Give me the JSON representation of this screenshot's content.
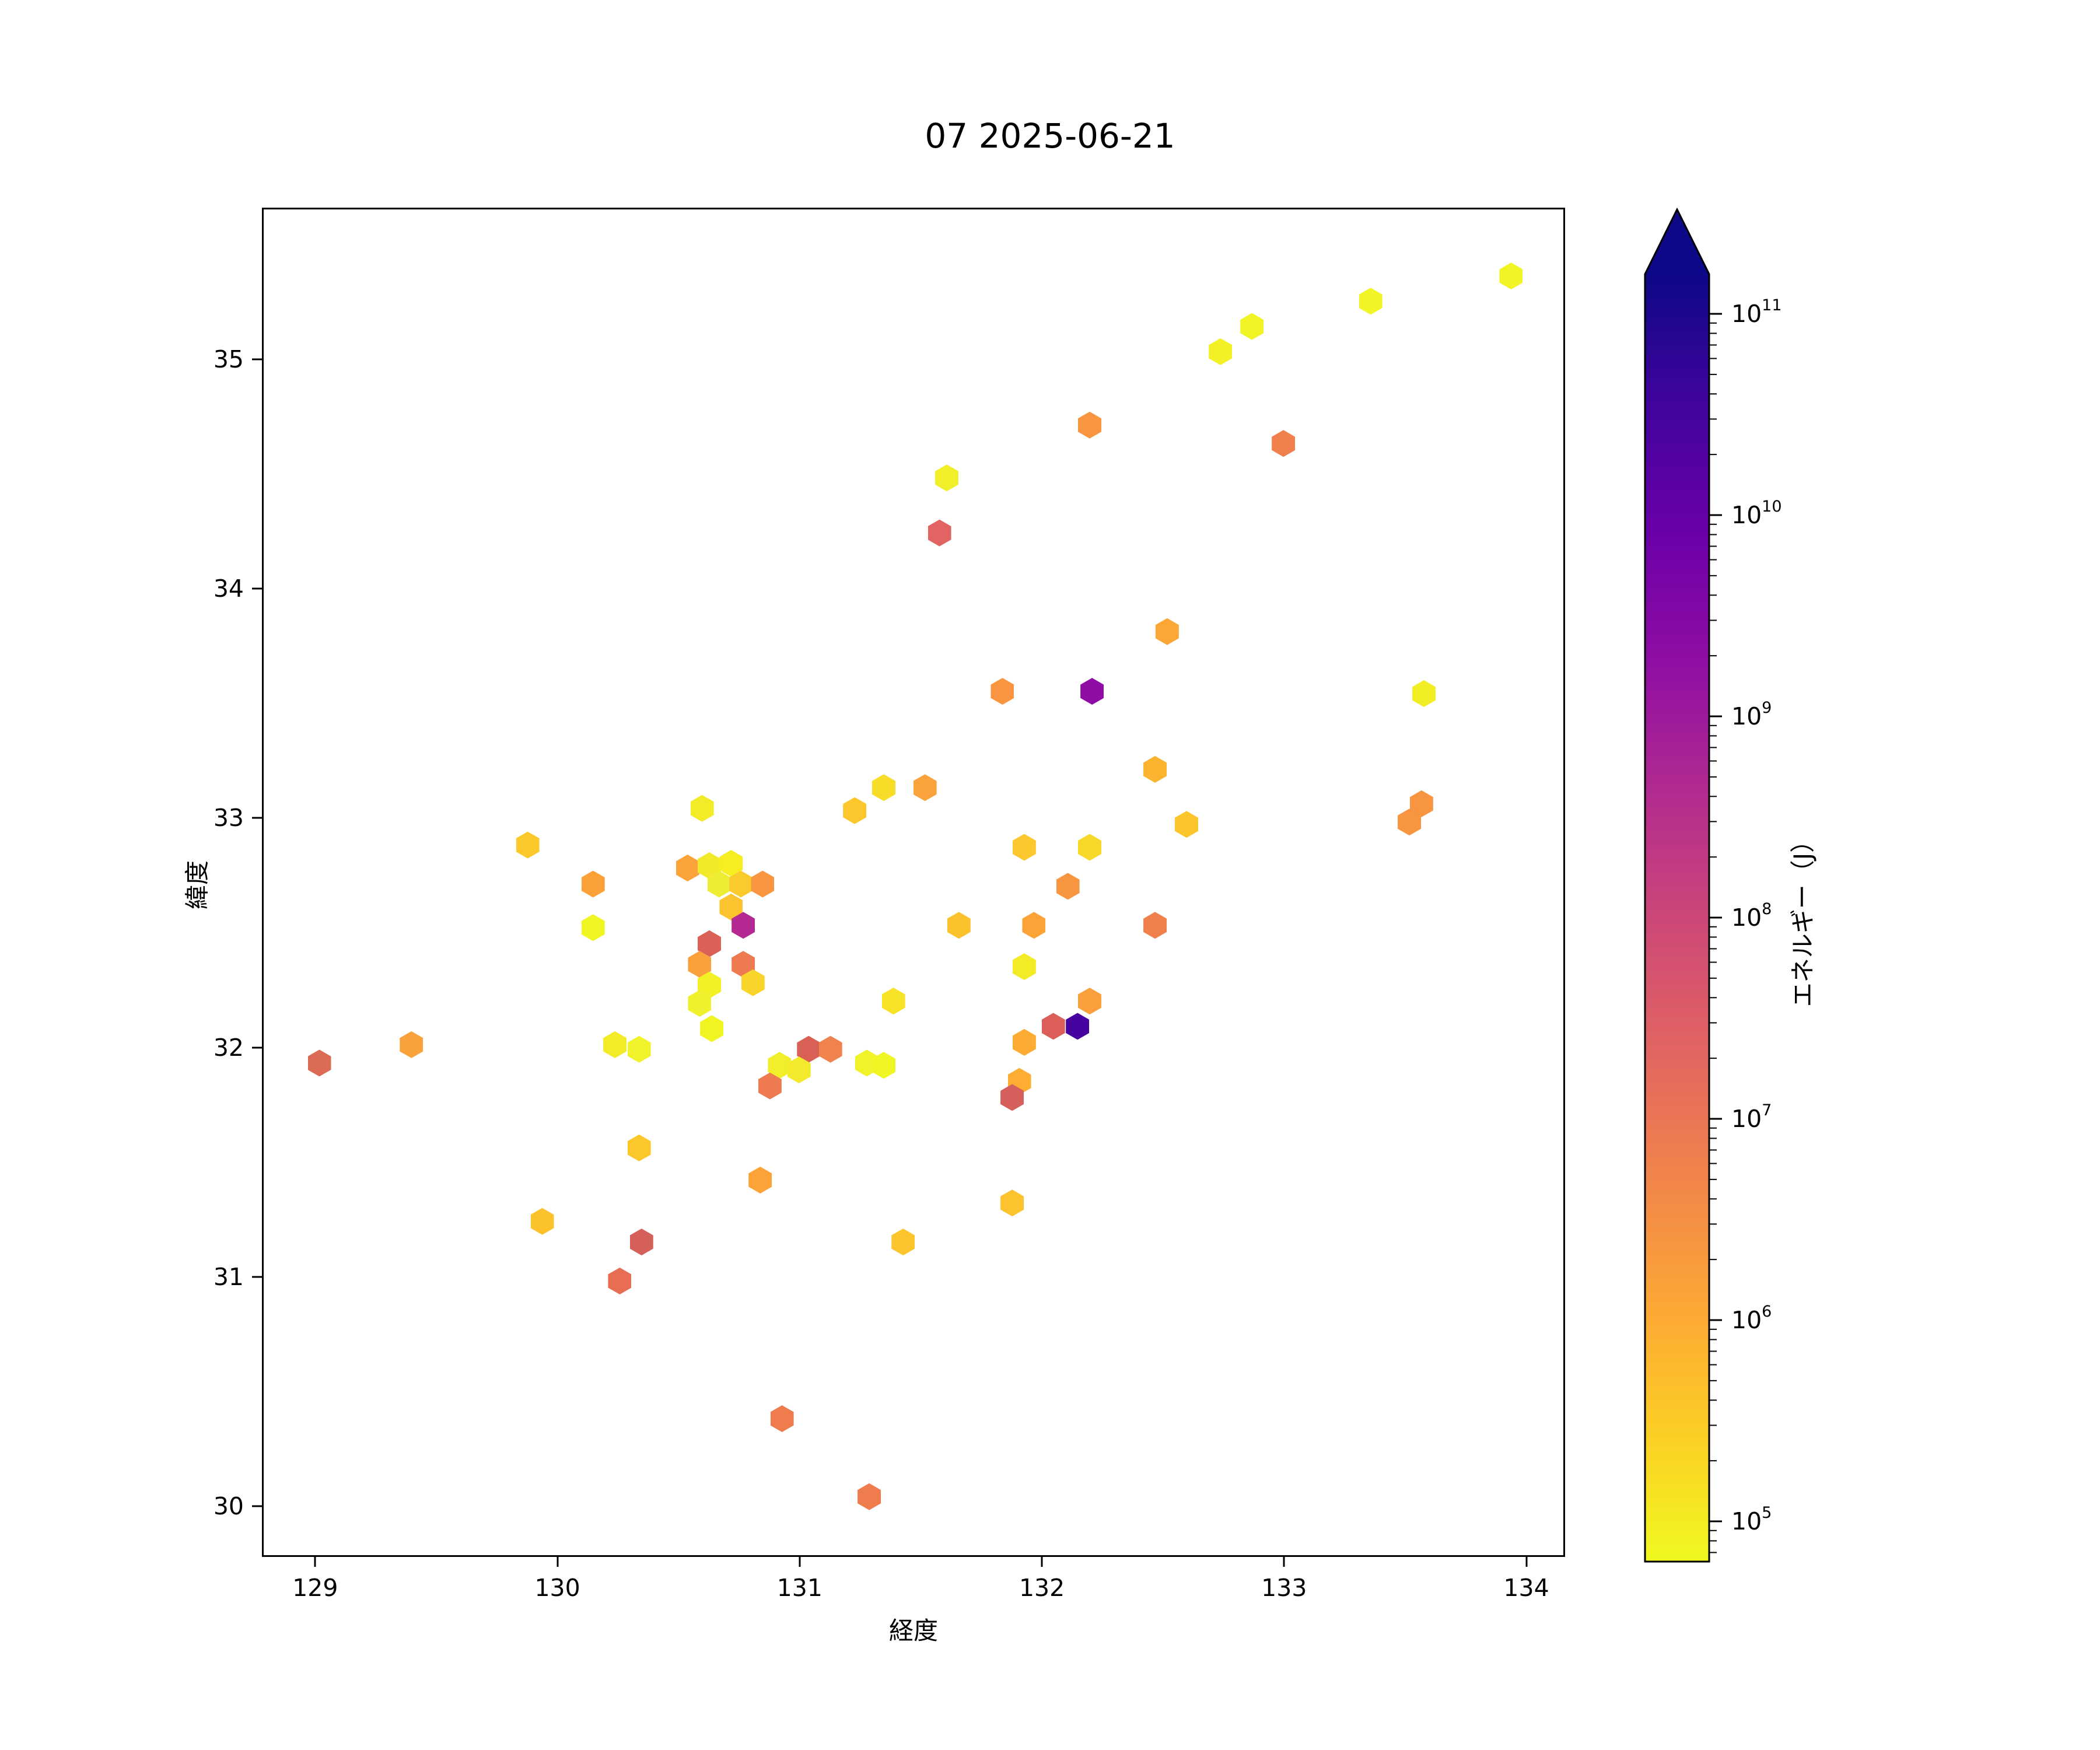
{
  "title": "07 2025-06-21",
  "axes": {
    "xlabel": "経度",
    "ylabel": "緯度",
    "xticks": [
      129,
      130,
      131,
      132,
      133,
      134
    ],
    "yticks": [
      30,
      31,
      32,
      33,
      34,
      35
    ]
  },
  "colorbar": {
    "label": "エネルギー（J）",
    "tick_exponents": [
      5,
      6,
      7,
      8,
      9,
      10,
      11
    ],
    "scale": "log",
    "extend": "max",
    "arrow_color": "#0D0887",
    "gradient_bottom_to_top": [
      "#F0F921",
      "#FCCE25",
      "#FCA636",
      "#F1844B",
      "#E16462",
      "#CC4778",
      "#B12A90",
      "#8F0DA4",
      "#6A00A8",
      "#41049D",
      "#0D0887"
    ]
  },
  "chart_data": {
    "type": "scatter",
    "marker": "hexagon",
    "title": "07 2025-06-21",
    "xlabel": "経度",
    "ylabel": "緯度",
    "colorbar_label": "エネルギー（J）",
    "xlim": [
      128.78,
      134.16
    ],
    "ylim": [
      29.78,
      35.66
    ],
    "grid": false,
    "colormap": "plasma_r (log scale, 10^5 – 10^11 J, arrow above max)",
    "columns": [
      "lon",
      "lat",
      "color",
      "energy_J_est"
    ],
    "points": [
      [
        133.93,
        35.37,
        "#F1F525",
        100000.0
      ],
      [
        133.35,
        35.26,
        "#F1F525",
        100000.0
      ],
      [
        132.86,
        35.15,
        "#F1F525",
        100000.0
      ],
      [
        132.73,
        35.04,
        "#F3F025",
        130000.0
      ],
      [
        132.99,
        34.64,
        "#F0804C",
        5000000.0
      ],
      [
        132.19,
        34.72,
        "#F99540",
        2000000.0
      ],
      [
        131.6,
        34.49,
        "#F1EF2A",
        140000.0
      ],
      [
        131.57,
        34.25,
        "#E16462",
        20000000.0
      ],
      [
        131.83,
        33.56,
        "#F99540",
        2000000.0
      ],
      [
        132.2,
        33.56,
        "#8F0DA4",
        2000000000.0
      ],
      [
        132.51,
        33.82,
        "#FCA636",
        800000.0
      ],
      [
        132.46,
        33.22,
        "#FCB32F",
        600000.0
      ],
      [
        131.34,
        33.14,
        "#F7DC28",
        250000.0
      ],
      [
        131.51,
        33.14,
        "#FAA23C",
        1500000.0
      ],
      [
        131.22,
        33.04,
        "#FCC72C",
        400000.0
      ],
      [
        130.59,
        33.05,
        "#F3EA28",
        120000.0
      ],
      [
        129.87,
        32.89,
        "#FCC92B",
        400000.0
      ],
      [
        133.57,
        33.55,
        "#F2EE25",
        120000.0
      ],
      [
        133.56,
        33.07,
        "#F89540",
        2000000.0
      ],
      [
        133.51,
        32.99,
        "#F89540",
        2000000.0
      ],
      [
        132.59,
        32.98,
        "#FCC52C",
        400000.0
      ],
      [
        131.92,
        32.88,
        "#FBC92E",
        400000.0
      ],
      [
        132.19,
        32.88,
        "#F8D829",
        250000.0
      ],
      [
        132.1,
        32.71,
        "#F89540",
        2000000.0
      ],
      [
        131.65,
        32.54,
        "#FBC22E",
        400000.0
      ],
      [
        131.96,
        32.54,
        "#FCA338",
        1200000.0
      ],
      [
        132.46,
        32.54,
        "#F0804C",
        5000000.0
      ],
      [
        131.92,
        32.36,
        "#F3EB26",
        120000.0
      ],
      [
        131.38,
        32.21,
        "#F6E227",
        200000.0
      ],
      [
        132.19,
        32.21,
        "#F9A03C",
        1600000.0
      ],
      [
        132.04,
        32.1,
        "#DC5E58",
        25000000.0
      ],
      [
        132.14,
        32.1,
        "#46039F",
        40000000000.0
      ],
      [
        131.27,
        31.94,
        "#F1F32A",
        100000.0
      ],
      [
        131.34,
        31.93,
        "#F0F524",
        80000.0
      ],
      [
        131.92,
        32.03,
        "#FCAC33",
        700000.0
      ],
      [
        131.9,
        31.86,
        "#FCAD32",
        700000.0
      ],
      [
        131.87,
        31.79,
        "#D5605B",
        30000000.0
      ],
      [
        130.53,
        32.79,
        "#FBA43B",
        1000000.0
      ],
      [
        130.62,
        32.8,
        "#F1E92A",
        150000.0
      ],
      [
        130.71,
        32.81,
        "#F6EE21",
        110000.0
      ],
      [
        130.66,
        32.72,
        "#EDEE33",
        150000.0
      ],
      [
        130.75,
        32.72,
        "#FACB2D",
        350000.0
      ],
      [
        130.84,
        32.72,
        "#F9953F",
        2000000.0
      ],
      [
        130.71,
        32.62,
        "#FBC32E",
        400000.0
      ],
      [
        130.76,
        32.54,
        "#B42991",
        400000000.0
      ],
      [
        130.62,
        32.46,
        "#DA6157",
        30000000.0
      ],
      [
        130.58,
        32.37,
        "#FAA13C",
        1500000.0
      ],
      [
        130.76,
        32.37,
        "#ED7A50",
        6000000.0
      ],
      [
        130.8,
        32.29,
        "#F9D42A",
        250000.0
      ],
      [
        130.62,
        32.28,
        "#F4F026",
        110000.0
      ],
      [
        130.58,
        32.2,
        "#EFF12F",
        130000.0
      ],
      [
        130.63,
        32.09,
        "#F0F521",
        80000.0
      ],
      [
        130.23,
        32.02,
        "#F3EA28",
        120000.0
      ],
      [
        130.33,
        32.0,
        "#F0F32B",
        100000.0
      ],
      [
        131.03,
        32.0,
        "#D96055",
        30000000.0
      ],
      [
        131.12,
        32.0,
        "#F0824D",
        5000000.0
      ],
      [
        130.91,
        31.93,
        "#F1EE2C",
        130000.0
      ],
      [
        130.99,
        31.91,
        "#F3E92D",
        150000.0
      ],
      [
        130.87,
        31.84,
        "#ED7A50",
        6000000.0
      ],
      [
        130.14,
        32.72,
        "#FCA137",
        1300000.0
      ],
      [
        130.14,
        32.53,
        "#F0F621",
        80000.0
      ],
      [
        130.33,
        31.57,
        "#FCC72B",
        400000.0
      ],
      [
        130.83,
        31.43,
        "#FCA237",
        1300000.0
      ],
      [
        129.93,
        31.25,
        "#FCC22C",
        400000.0
      ],
      [
        130.34,
        31.16,
        "#D5605A",
        30000000.0
      ],
      [
        130.25,
        30.99,
        "#E86E53",
        10000000.0
      ],
      [
        131.42,
        31.16,
        "#FCC52E",
        400000.0
      ],
      [
        131.87,
        31.33,
        "#FCC32F",
        400000.0
      ],
      [
        130.92,
        30.39,
        "#EE7C4D",
        6000000.0
      ],
      [
        131.28,
        30.05,
        "#EE7C4D",
        6000000.0
      ],
      [
        129.01,
        31.94,
        "#DC6B56",
        20000000.0
      ],
      [
        129.39,
        32.02,
        "#F9A23C",
        1600000.0
      ]
    ]
  }
}
